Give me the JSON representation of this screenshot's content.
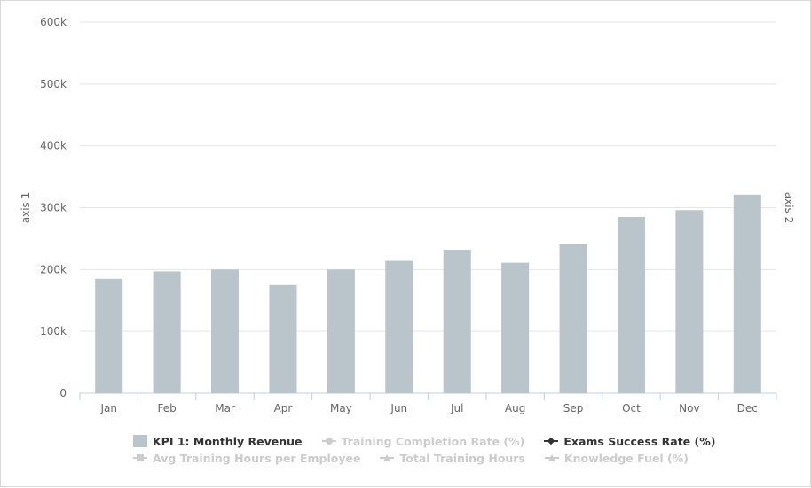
{
  "chart_data": {
    "type": "bar",
    "categories": [
      "Jan",
      "Feb",
      "Mar",
      "Apr",
      "May",
      "Jun",
      "Jul",
      "Aug",
      "Sep",
      "Oct",
      "Nov",
      "Dec"
    ],
    "series": [
      {
        "name": "KPI 1: Monthly Revenue",
        "color": "#b9c4cb",
        "values": [
          185000,
          197000,
          200000,
          175000,
          200000,
          214000,
          232000,
          211000,
          241000,
          285000,
          296000,
          321000
        ]
      }
    ],
    "yaxis_left": {
      "label": "axis 1",
      "ticks": [
        0,
        100000,
        200000,
        300000,
        400000,
        500000,
        600000
      ],
      "tick_labels": [
        "0",
        "100k",
        "200k",
        "300k",
        "400k",
        "500k",
        "600k"
      ],
      "ylim": [
        0,
        600000
      ]
    },
    "yaxis_right": {
      "label": "axis 2"
    },
    "grid": true,
    "legend_position": "bottom"
  },
  "legend": {
    "rows": [
      [
        {
          "label": "KPI 1: Monthly Revenue",
          "symbol": "bar",
          "active": true
        },
        {
          "label": "Training Completion Rate (%)",
          "symbol": "circle",
          "active": false
        },
        {
          "label": "Exams Success Rate (%)",
          "symbol": "diamond",
          "active": true
        }
      ],
      [
        {
          "label": "Avg Training Hours per Employee",
          "symbol": "square",
          "active": false
        },
        {
          "label": "Total Training Hours",
          "symbol": "triangle",
          "active": false
        },
        {
          "label": "Knowledge Fuel (%)",
          "symbol": "triangle",
          "active": false
        }
      ]
    ]
  },
  "colors": {
    "bar": "#b9c4cb",
    "grid": "#e6e6e6",
    "axis": "#c0d0e0",
    "tick_text": "#666666",
    "axis_title": "#666666",
    "legend_active": "#333333",
    "legend_inactive": "#cccccc"
  }
}
